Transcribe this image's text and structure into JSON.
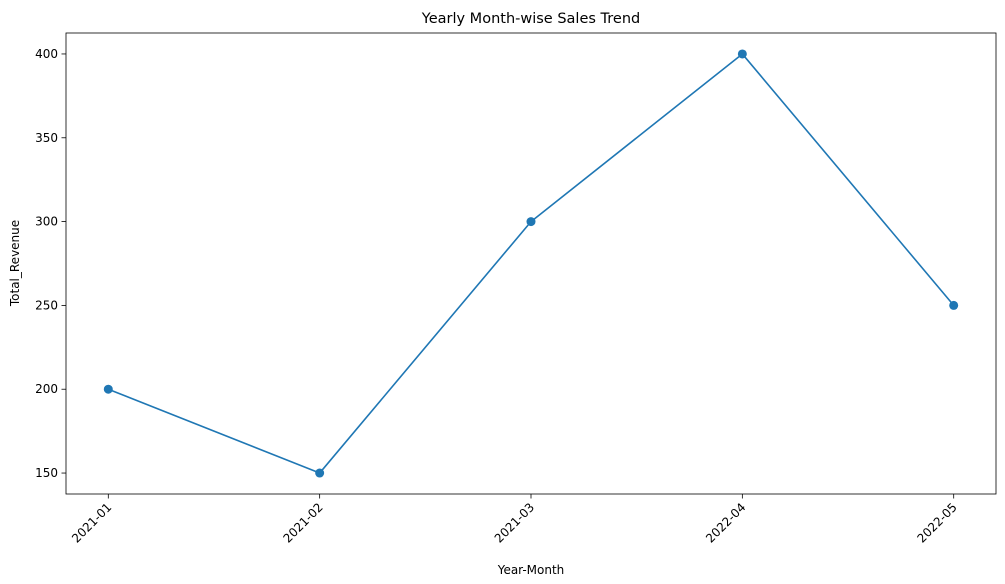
{
  "chart_data": {
    "type": "line",
    "title": "Yearly Month-wise Sales Trend",
    "xlabel": "Year-Month",
    "ylabel": "Total_Revenue",
    "categories": [
      "2021-01",
      "2021-02",
      "2021-03",
      "2022-04",
      "2022-05"
    ],
    "series": [
      {
        "values": [
          200,
          150,
          300,
          400,
          250
        ],
        "color": "#1f77b4",
        "marker": "circle"
      }
    ],
    "yticks": [
      150,
      200,
      250,
      300,
      350,
      400
    ],
    "ylim": [
      137.5,
      412.5
    ],
    "xtick_rotation": 45,
    "grid": false,
    "legend": "none"
  }
}
